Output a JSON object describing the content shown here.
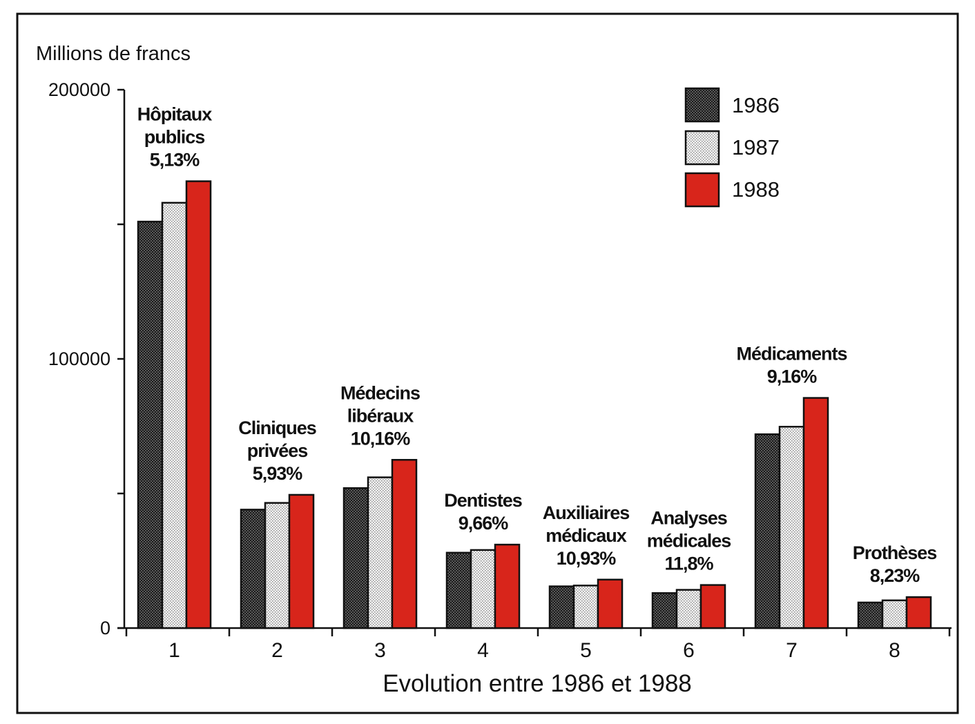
{
  "chart_data": {
    "type": "bar",
    "ylabel": "Millions de francs",
    "xlabel": "Evolution entre 1986 et 1988",
    "ylim": [
      0,
      200000
    ],
    "yticks": [
      {
        "value": 0,
        "label": "0"
      },
      {
        "value": 50000,
        "label": ""
      },
      {
        "value": 100000,
        "label": "100000"
      },
      {
        "value": 150000,
        "label": ""
      },
      {
        "value": 200000,
        "label": "200000"
      }
    ],
    "categories": [
      "1",
      "2",
      "3",
      "4",
      "5",
      "6",
      "7",
      "8"
    ],
    "category_labels": [
      [
        "Hôpitaux",
        "publics",
        "5,13%"
      ],
      [
        "Cliniques",
        "privées",
        "5,93%"
      ],
      [
        "Médecins",
        "libéraux",
        "10,16%"
      ],
      [
        "Dentistes",
        "9,66%"
      ],
      [
        "Auxiliaires",
        "médicaux",
        "10,93%"
      ],
      [
        "Analyses",
        "médicales",
        "11,8%"
      ],
      [
        "Médicaments",
        "9,16%"
      ],
      [
        "Prothèses",
        "8,23%"
      ]
    ],
    "series": [
      {
        "name": "1986",
        "values": [
          151000,
          44000,
          52000,
          28000,
          15500,
          13000,
          72000,
          9500
        ]
      },
      {
        "name": "1987",
        "values": [
          158000,
          46500,
          56000,
          29000,
          15800,
          14200,
          74800,
          10300
        ]
      },
      {
        "name": "1988",
        "values": [
          166000,
          49500,
          62500,
          31000,
          18000,
          16000,
          85500,
          11500
        ]
      }
    ],
    "legend_position": "top-right",
    "grid": false,
    "colors": {
      "1986": "#4a4a4a",
      "1987": "#e6e6e6",
      "1988": "#d8251b"
    }
  }
}
